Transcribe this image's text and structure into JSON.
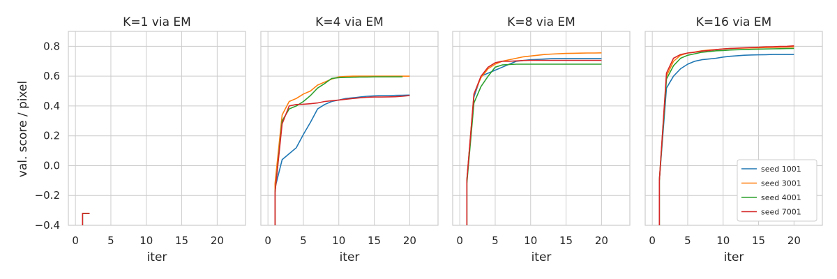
{
  "figure": {
    "ylabel": "val. score / pixel",
    "xlabel": "iter"
  },
  "colors": {
    "seed 1001": "#1f77b4",
    "seed 3001": "#ff7f0e",
    "seed 4001": "#2ca02c",
    "seed 7001": "#d62728",
    "grid": "#cccccc",
    "frame": "#cccccc"
  },
  "chart_data": [
    {
      "type": "line",
      "title": "K=1 via EM",
      "xlabel": "iter",
      "ylabel": "val. score / pixel",
      "xlim": [
        -1,
        24
      ],
      "ylim": [
        -0.4,
        0.9
      ],
      "xticks": [
        0,
        5,
        10,
        15,
        20
      ],
      "yticks": [
        -0.4,
        -0.2,
        0.0,
        0.2,
        0.4,
        0.6,
        0.8
      ],
      "grid": true,
      "legend": null,
      "series": [
        {
          "name": "seed 1001",
          "x": [
            1,
            1,
            2
          ],
          "y": [
            -0.45,
            -0.32,
            -0.32
          ]
        },
        {
          "name": "seed 3001",
          "x": [
            1,
            1,
            2
          ],
          "y": [
            -0.45,
            -0.32,
            -0.32
          ]
        },
        {
          "name": "seed 4001",
          "x": [
            1,
            1,
            2
          ],
          "y": [
            -0.45,
            -0.32,
            -0.32
          ]
        },
        {
          "name": "seed 7001",
          "x": [
            1,
            1,
            2
          ],
          "y": [
            -0.45,
            -0.32,
            -0.32
          ]
        }
      ]
    },
    {
      "type": "line",
      "title": "K=4 via EM",
      "xlabel": "iter",
      "xlim": [
        -1,
        24
      ],
      "ylim": [
        -0.4,
        0.9
      ],
      "xticks": [
        0,
        5,
        10,
        15,
        20
      ],
      "grid": true,
      "legend": null,
      "series": [
        {
          "name": "seed 1001",
          "x": [
            1,
            1,
            2,
            3,
            4,
            5,
            6,
            7,
            8,
            9,
            10,
            11,
            12,
            13,
            14,
            15,
            16,
            17,
            18,
            19,
            20
          ],
          "y": [
            -0.45,
            -0.15,
            0.04,
            0.08,
            0.12,
            0.21,
            0.29,
            0.38,
            0.41,
            0.43,
            0.44,
            0.45,
            0.455,
            0.46,
            0.465,
            0.468,
            0.47,
            0.47,
            0.471,
            0.472,
            0.473
          ]
        },
        {
          "name": "seed 3001",
          "x": [
            1,
            1,
            2,
            3,
            4,
            5,
            6,
            7,
            8,
            9,
            10,
            11,
            12,
            13,
            14,
            15,
            16,
            17,
            18,
            19,
            20
          ],
          "y": [
            -0.45,
            -0.12,
            0.34,
            0.43,
            0.45,
            0.48,
            0.5,
            0.54,
            0.56,
            0.58,
            0.595,
            0.598,
            0.6,
            0.6,
            0.6,
            0.6,
            0.6,
            0.6,
            0.6,
            0.6,
            0.6
          ]
        },
        {
          "name": "seed 4001",
          "x": [
            1,
            1,
            2,
            3,
            4,
            5,
            6,
            7,
            8,
            9,
            10,
            11,
            12,
            13,
            14,
            15,
            16,
            17,
            18,
            19
          ],
          "y": [
            -0.45,
            -0.18,
            0.3,
            0.38,
            0.4,
            0.43,
            0.47,
            0.52,
            0.55,
            0.585,
            0.59,
            0.592,
            0.593,
            0.594,
            0.594,
            0.595,
            0.595,
            0.595,
            0.595,
            0.595
          ]
        },
        {
          "name": "seed 7001",
          "x": [
            1,
            1,
            2,
            3,
            4,
            5,
            6,
            7,
            8,
            9,
            10,
            11,
            12,
            13,
            14,
            15,
            16,
            17,
            18,
            19,
            20
          ],
          "y": [
            -0.45,
            -0.18,
            0.28,
            0.4,
            0.41,
            0.412,
            0.415,
            0.42,
            0.43,
            0.435,
            0.44,
            0.445,
            0.45,
            0.455,
            0.458,
            0.46,
            0.46,
            0.461,
            0.462,
            0.465,
            0.47
          ]
        }
      ]
    },
    {
      "type": "line",
      "title": "K=8 via EM",
      "xlabel": "iter",
      "xlim": [
        -1,
        24
      ],
      "ylim": [
        -0.4,
        0.9
      ],
      "xticks": [
        0,
        5,
        10,
        15,
        20
      ],
      "grid": true,
      "legend": null,
      "series": [
        {
          "name": "seed 1001",
          "x": [
            1,
            1,
            2,
            3,
            4,
            5,
            6,
            7,
            8,
            9,
            10,
            11,
            12,
            13,
            14,
            15,
            16,
            17,
            18,
            19,
            20
          ],
          "y": [
            -0.45,
            -0.1,
            0.46,
            0.6,
            0.62,
            0.64,
            0.66,
            0.68,
            0.7,
            0.705,
            0.71,
            0.712,
            0.715,
            0.717,
            0.718,
            0.718,
            0.718,
            0.718,
            0.718,
            0.718,
            0.718
          ]
        },
        {
          "name": "seed 3001",
          "x": [
            1,
            1,
            2,
            3,
            4,
            5,
            6,
            7,
            8,
            9,
            10,
            11,
            12,
            13,
            14,
            15,
            16,
            17,
            18,
            19,
            20
          ],
          "y": [
            -0.45,
            -0.1,
            0.48,
            0.59,
            0.65,
            0.68,
            0.7,
            0.71,
            0.72,
            0.73,
            0.735,
            0.74,
            0.745,
            0.748,
            0.75,
            0.752,
            0.753,
            0.754,
            0.755,
            0.755,
            0.756
          ]
        },
        {
          "name": "seed 4001",
          "x": [
            1,
            1,
            2,
            3,
            4,
            5,
            6,
            7,
            8,
            9,
            10,
            11,
            12,
            13,
            14,
            15,
            16,
            17,
            18,
            19,
            20
          ],
          "y": [
            -0.45,
            -0.12,
            0.42,
            0.53,
            0.6,
            0.66,
            0.675,
            0.678,
            0.68,
            0.68,
            0.68,
            0.68,
            0.68,
            0.68,
            0.68,
            0.68,
            0.68,
            0.68,
            0.68,
            0.68,
            0.68
          ]
        },
        {
          "name": "seed 7001",
          "x": [
            1,
            1,
            2,
            3,
            4,
            5,
            6,
            7,
            8,
            9,
            10,
            11,
            12,
            13,
            14,
            15,
            16,
            17,
            18,
            19,
            20
          ],
          "y": [
            -0.45,
            -0.1,
            0.48,
            0.6,
            0.66,
            0.69,
            0.7,
            0.7,
            0.702,
            0.705,
            0.706,
            0.706,
            0.706,
            0.706,
            0.706,
            0.706,
            0.706,
            0.706,
            0.706,
            0.706,
            0.706
          ]
        }
      ]
    },
    {
      "type": "line",
      "title": "K=16 via EM",
      "xlabel": "iter",
      "xlim": [
        -1,
        24
      ],
      "ylim": [
        -0.4,
        0.9
      ],
      "xticks": [
        0,
        5,
        10,
        15,
        20
      ],
      "grid": true,
      "legend": "lower right",
      "series": [
        {
          "name": "seed 1001",
          "x": [
            1,
            1,
            2,
            3,
            4,
            5,
            6,
            7,
            8,
            9,
            10,
            11,
            12,
            13,
            14,
            15,
            16,
            17,
            18,
            19,
            20
          ],
          "y": [
            -0.45,
            -0.1,
            0.52,
            0.6,
            0.65,
            0.68,
            0.7,
            0.71,
            0.715,
            0.72,
            0.728,
            0.733,
            0.737,
            0.74,
            0.742,
            0.743,
            0.744,
            0.745,
            0.745,
            0.745,
            0.745
          ]
        },
        {
          "name": "seed 3001",
          "x": [
            1,
            1,
            2,
            3,
            4,
            5,
            6,
            7,
            8,
            9,
            10,
            11,
            12,
            13,
            14,
            15,
            16,
            17,
            18,
            19,
            20
          ],
          "y": [
            -0.45,
            -0.1,
            0.6,
            0.7,
            0.74,
            0.755,
            0.762,
            0.77,
            0.775,
            0.778,
            0.782,
            0.785,
            0.787,
            0.788,
            0.789,
            0.79,
            0.792,
            0.793,
            0.794,
            0.795,
            0.796
          ]
        },
        {
          "name": "seed 4001",
          "x": [
            1,
            1,
            2,
            3,
            4,
            5,
            6,
            7,
            8,
            9,
            10,
            11,
            12,
            13,
            14,
            15,
            16,
            17,
            18,
            19,
            20
          ],
          "y": [
            -0.45,
            -0.1,
            0.58,
            0.67,
            0.72,
            0.74,
            0.75,
            0.76,
            0.765,
            0.77,
            0.772,
            0.775,
            0.777,
            0.778,
            0.78,
            0.781,
            0.782,
            0.783,
            0.784,
            0.785,
            0.786
          ]
        },
        {
          "name": "seed 7001",
          "x": [
            1,
            1,
            2,
            3,
            4,
            5,
            6,
            7,
            8,
            9,
            10,
            11,
            12,
            13,
            14,
            15,
            16,
            17,
            18,
            19,
            20
          ],
          "y": [
            -0.45,
            -0.1,
            0.62,
            0.72,
            0.745,
            0.755,
            0.76,
            0.768,
            0.772,
            0.778,
            0.782,
            0.786,
            0.788,
            0.79,
            0.792,
            0.794,
            0.796,
            0.797,
            0.799,
            0.8,
            0.803
          ]
        }
      ]
    }
  ]
}
